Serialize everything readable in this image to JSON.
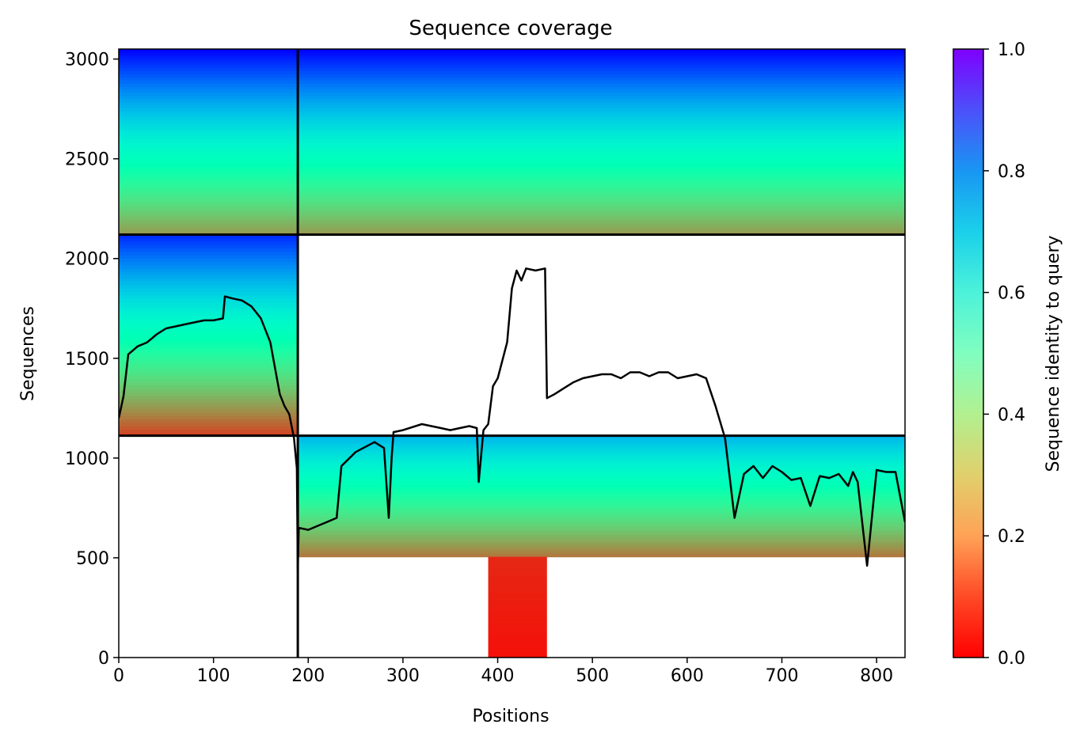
{
  "chart_data": {
    "type": "heatmap",
    "title": "Sequence coverage",
    "xlabel": "Positions",
    "ylabel": "Sequences",
    "xlim": [
      0,
      830
    ],
    "ylim": [
      0,
      3050
    ],
    "xticks": [
      0,
      100,
      200,
      300,
      400,
      500,
      600,
      700,
      800
    ],
    "yticks": [
      0,
      500,
      1000,
      1500,
      2000,
      2500,
      3000
    ],
    "grid": false,
    "colorbar": {
      "label": "Sequence identity to query",
      "ticks": [
        "0.0",
        "0.2",
        "0.4",
        "0.6",
        "0.8",
        "1.0"
      ],
      "range": [
        0,
        1
      ],
      "colormap": "rainbow_r"
    },
    "dividers": {
      "vertical_x": 189,
      "horizontal_y": [
        2120,
        1112
      ]
    },
    "blocks": [
      {
        "x_start": 0,
        "x_end": 189,
        "y_start": 2120,
        "y_end": 3050,
        "id_top": 1.0,
        "id_bottom": 0.2
      },
      {
        "x_start": 189,
        "x_end": 830,
        "y_start": 2120,
        "y_end": 3050,
        "id_top": 1.0,
        "id_bottom": 0.2
      },
      {
        "x_start": 0,
        "x_end": 189,
        "y_start": 1112,
        "y_end": 2120,
        "id_top": 0.95,
        "id_bottom": 0.08
      },
      {
        "x_start": 189,
        "x_end": 830,
        "y_start": 505,
        "y_end": 1112,
        "id_top": 0.75,
        "id_bottom": 0.15
      },
      {
        "x_start": 390,
        "x_end": 452,
        "y_start": 0,
        "y_end": 505,
        "id_top": 0.05,
        "id_bottom": 0.02
      }
    ],
    "series": [
      {
        "type": "line",
        "color": "#000000",
        "x": [
          0,
          5,
          10,
          20,
          30,
          40,
          50,
          60,
          70,
          80,
          90,
          100,
          110,
          112,
          120,
          130,
          140,
          150,
          160,
          170,
          175,
          180,
          185,
          188,
          189,
          190,
          200,
          210,
          220,
          230,
          235,
          250,
          270,
          280,
          285,
          288,
          290,
          300,
          320,
          330,
          340,
          350,
          360,
          370,
          378,
          380,
          385,
          390,
          395,
          400,
          410,
          415,
          420,
          425,
          430,
          440,
          450,
          452,
          460,
          470,
          480,
          490,
          500,
          510,
          520,
          530,
          540,
          550,
          560,
          570,
          580,
          590,
          600,
          610,
          620,
          630,
          640,
          650,
          660,
          670,
          680,
          690,
          700,
          710,
          720,
          730,
          740,
          750,
          760,
          770,
          775,
          780,
          790,
          800,
          810,
          820,
          830
        ],
        "y": [
          1200,
          1310,
          1520,
          1560,
          1580,
          1620,
          1650,
          1660,
          1670,
          1680,
          1690,
          1690,
          1700,
          1810,
          1800,
          1790,
          1760,
          1700,
          1580,
          1320,
          1260,
          1220,
          1100,
          950,
          440,
          650,
          640,
          660,
          680,
          700,
          960,
          1030,
          1080,
          1050,
          700,
          1000,
          1130,
          1140,
          1170,
          1160,
          1150,
          1140,
          1150,
          1160,
          1150,
          880,
          1140,
          1170,
          1360,
          1400,
          1580,
          1850,
          1940,
          1890,
          1950,
          1940,
          1950,
          1300,
          1320,
          1350,
          1380,
          1400,
          1410,
          1420,
          1420,
          1400,
          1430,
          1430,
          1410,
          1430,
          1430,
          1400,
          1410,
          1420,
          1400,
          1260,
          1100,
          700,
          920,
          960,
          900,
          960,
          930,
          890,
          900,
          760,
          910,
          900,
          920,
          860,
          930,
          880,
          460,
          940,
          930,
          930,
          680
        ]
      }
    ]
  }
}
